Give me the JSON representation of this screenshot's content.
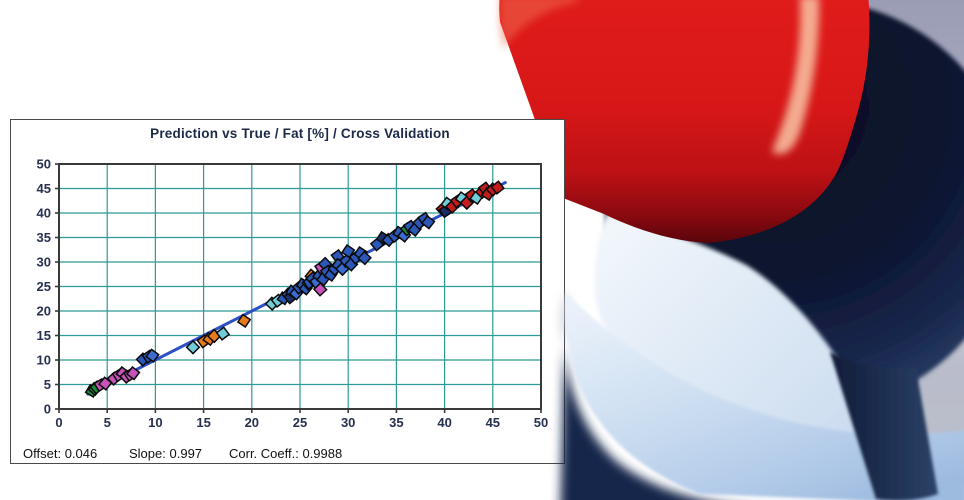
{
  "panel": {
    "title": "Prediction vs True  /  Fat [%]  /  Cross Validation"
  },
  "stats": {
    "offset_label": "Offset:",
    "offset_value": "0.046",
    "slope_label": "Slope:",
    "slope_value": "0.997",
    "corr_label": "Corr. Coeff.:",
    "corr_value": "0.9988"
  },
  "chart_data": {
    "type": "scatter",
    "title": "Prediction vs True  /  Fat [%]  /  Cross Validation",
    "xlabel": "",
    "ylabel": "",
    "xlim": [
      0,
      50
    ],
    "ylim": [
      0,
      50
    ],
    "xticks": [
      0,
      5,
      10,
      15,
      20,
      25,
      30,
      35,
      40,
      45,
      50
    ],
    "yticks": [
      0,
      5,
      10,
      15,
      20,
      25,
      30,
      35,
      40,
      45,
      50
    ],
    "grid": true,
    "grid_color": "#2E9A96",
    "frame_color": "#3A3A3A",
    "tick_label_color": "#26304F",
    "fit_line": {
      "offset": 0.046,
      "slope": 0.997,
      "x_start": 3.0,
      "x_end": 46.3,
      "color": "#2B50C4",
      "width": 3
    },
    "marker": "diamond",
    "marker_outline": "#0A0A0A",
    "marker_colors": {
      "blue": "#2B57B8",
      "blue2": "#3C6CD0",
      "cyan": "#72CDD8",
      "magenta": "#C553B9",
      "orange": "#E87A1E",
      "green": "#1E8A3C",
      "red": "#C41C1C",
      "navy": "#1A2F68"
    },
    "series": [
      {
        "name": "cross-validation-samples",
        "points": [
          [
            3.4,
            3.7,
            "green"
          ],
          [
            3.7,
            4.1,
            "green"
          ],
          [
            3.9,
            4.4,
            "green"
          ],
          [
            4.3,
            4.9,
            "magenta"
          ],
          [
            4.8,
            5.2,
            "magenta"
          ],
          [
            5.7,
            6.2,
            "magenta"
          ],
          [
            6.2,
            6.9,
            "magenta"
          ],
          [
            6.6,
            7.3,
            "magenta"
          ],
          [
            7.0,
            6.6,
            "magenta"
          ],
          [
            7.4,
            7.0,
            "magenta"
          ],
          [
            7.7,
            7.3,
            "magenta"
          ],
          [
            8.7,
            10.1,
            "blue"
          ],
          [
            9.3,
            10.7,
            "blue"
          ],
          [
            9.7,
            10.9,
            "blue2"
          ],
          [
            13.9,
            12.6,
            "cyan"
          ],
          [
            15.0,
            13.8,
            "orange"
          ],
          [
            15.6,
            14.3,
            "orange"
          ],
          [
            16.1,
            14.9,
            "orange"
          ],
          [
            17.0,
            15.4,
            "cyan"
          ],
          [
            19.2,
            18.0,
            "orange"
          ],
          [
            22.1,
            21.5,
            "cyan"
          ],
          [
            22.7,
            22.1,
            "cyan"
          ],
          [
            23.3,
            22.6,
            "blue"
          ],
          [
            23.8,
            23.4,
            "blue"
          ],
          [
            24.0,
            22.8,
            "navy"
          ],
          [
            24.2,
            24.0,
            "blue"
          ],
          [
            24.6,
            23.6,
            "blue2"
          ],
          [
            24.9,
            24.8,
            "blue"
          ],
          [
            25.3,
            25.4,
            "blue"
          ],
          [
            25.6,
            24.6,
            "blue"
          ],
          [
            25.9,
            25.6,
            "green"
          ],
          [
            26.0,
            25.8,
            "blue"
          ],
          [
            26.2,
            27.2,
            "orange"
          ],
          [
            26.3,
            26.6,
            "blue"
          ],
          [
            26.7,
            25.9,
            "blue2"
          ],
          [
            27.0,
            27.2,
            "blue"
          ],
          [
            27.1,
            24.4,
            "magenta"
          ],
          [
            27.2,
            28.9,
            "magenta"
          ],
          [
            27.4,
            26.5,
            "blue"
          ],
          [
            27.6,
            29.6,
            "blue"
          ],
          [
            27.8,
            28.0,
            "blue"
          ],
          [
            28.2,
            27.4,
            "blue"
          ],
          [
            28.6,
            28.6,
            "blue"
          ],
          [
            28.9,
            31.2,
            "blue"
          ],
          [
            29.0,
            29.4,
            "blue"
          ],
          [
            29.4,
            28.6,
            "blue2"
          ],
          [
            29.8,
            30.2,
            "blue"
          ],
          [
            30.0,
            32.2,
            "blue"
          ],
          [
            30.3,
            29.5,
            "blue"
          ],
          [
            30.8,
            30.9,
            "blue"
          ],
          [
            31.3,
            31.8,
            "blue"
          ],
          [
            31.7,
            30.8,
            "blue"
          ],
          [
            33.0,
            33.6,
            "blue"
          ],
          [
            33.6,
            34.9,
            "navy"
          ],
          [
            34.2,
            34.5,
            "blue"
          ],
          [
            34.8,
            35.3,
            "blue"
          ],
          [
            35.3,
            36.0,
            "blue"
          ],
          [
            35.8,
            35.4,
            "blue2"
          ],
          [
            36.1,
            36.7,
            "green"
          ],
          [
            36.4,
            37.2,
            "blue"
          ],
          [
            36.9,
            36.6,
            "blue"
          ],
          [
            37.4,
            38.0,
            "blue"
          ],
          [
            37.9,
            38.8,
            "blue"
          ],
          [
            38.3,
            38.1,
            "blue"
          ],
          [
            39.8,
            40.8,
            "red"
          ],
          [
            40.1,
            40.4,
            "navy"
          ],
          [
            40.3,
            41.9,
            "cyan"
          ],
          [
            40.8,
            41.3,
            "red"
          ],
          [
            41.3,
            42.4,
            "red"
          ],
          [
            41.8,
            43.0,
            "cyan"
          ],
          [
            42.3,
            42.1,
            "red"
          ],
          [
            42.8,
            43.6,
            "red"
          ],
          [
            43.3,
            43.1,
            "cyan"
          ],
          [
            43.9,
            44.3,
            "red"
          ],
          [
            44.2,
            45.0,
            "red"
          ],
          [
            44.5,
            43.9,
            "red"
          ],
          [
            45.0,
            44.8,
            "red"
          ],
          [
            45.5,
            45.2,
            "red"
          ]
        ]
      }
    ],
    "annotations": [
      "Offset: 0.046",
      "Slope: 0.997",
      "Corr. Coeff.: 0.9988"
    ]
  },
  "logo": {
    "name": "opus-swirl-logo",
    "colors": {
      "red_main": "#D71717",
      "red_dark": "#59050B",
      "red_highlight": "#F5B497",
      "sphere_dark_navy": "#0A0F24",
      "sphere_rim_navy": "#31486F",
      "crescent_light_blue": "#B4CCE9",
      "crescent_pale": "#EAF1FA",
      "shadow_gray": "#9598B1"
    }
  }
}
